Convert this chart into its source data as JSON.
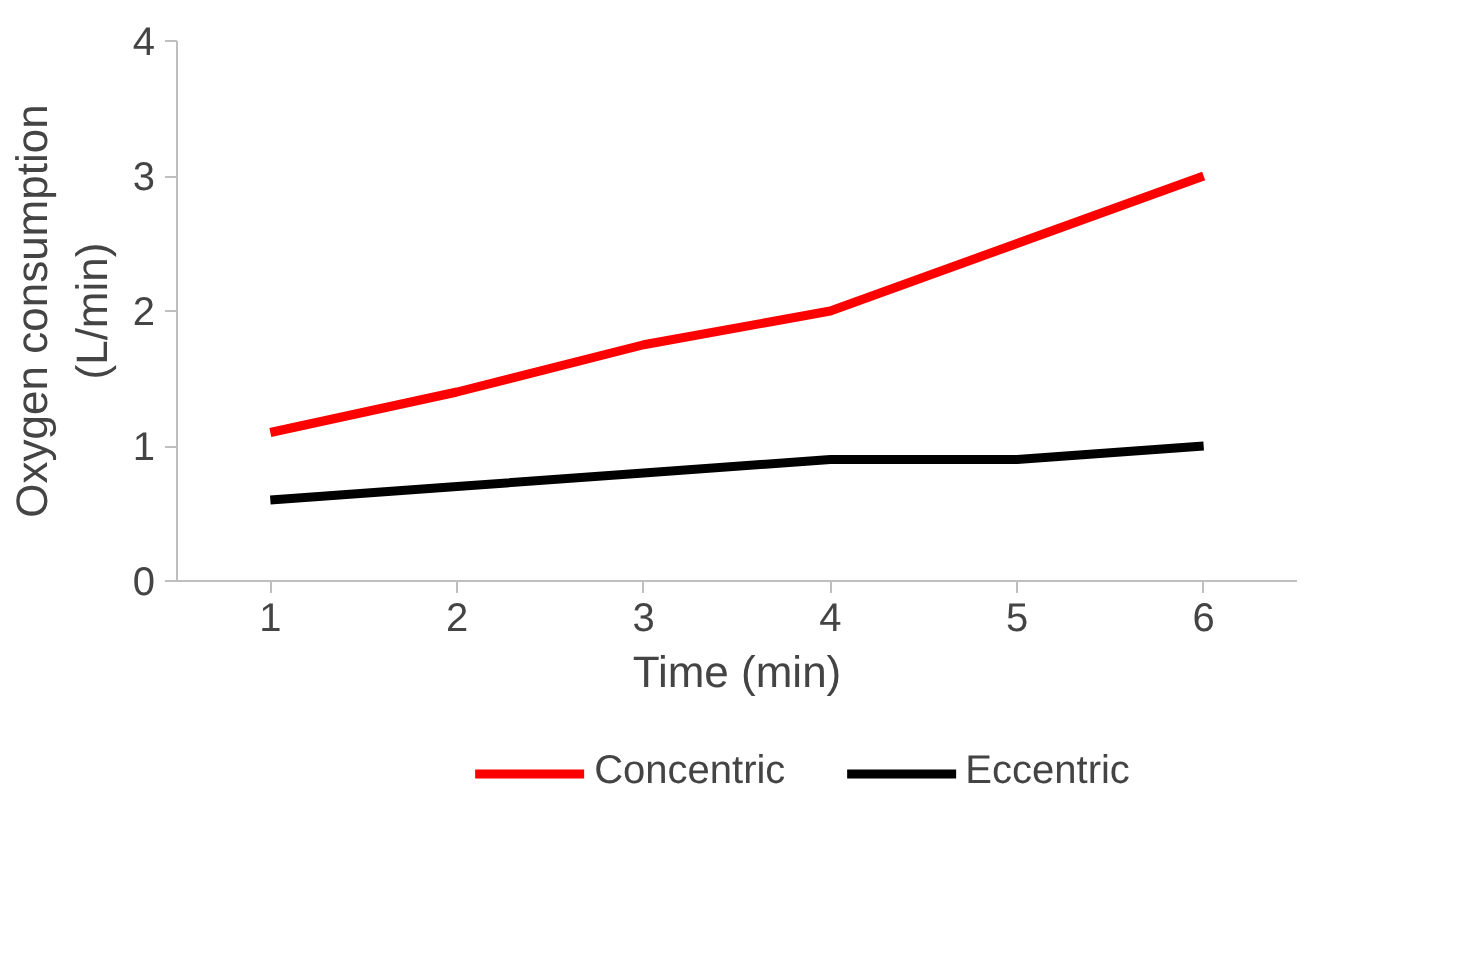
{
  "chart_data": {
    "type": "line",
    "xlabel": "Time (min)",
    "ylabel": "Oxygen consumption\n(L/min)",
    "categories": [
      "1",
      "2",
      "3",
      "4",
      "5",
      "6"
    ],
    "series": [
      {
        "name": "Concentric",
        "color": "#ff0000",
        "values": [
          1.1,
          1.4,
          1.75,
          2.0,
          2.5,
          3.0
        ]
      },
      {
        "name": "Eccentric",
        "color": "#000000",
        "values": [
          0.6,
          0.7,
          0.8,
          0.9,
          0.9,
          1.0
        ]
      }
    ],
    "ylim": [
      0,
      4
    ],
    "yticks": [
      0,
      1,
      2,
      3,
      4
    ],
    "grid": false,
    "legend": "bottom",
    "marker": "none",
    "line_style": "solid"
  }
}
